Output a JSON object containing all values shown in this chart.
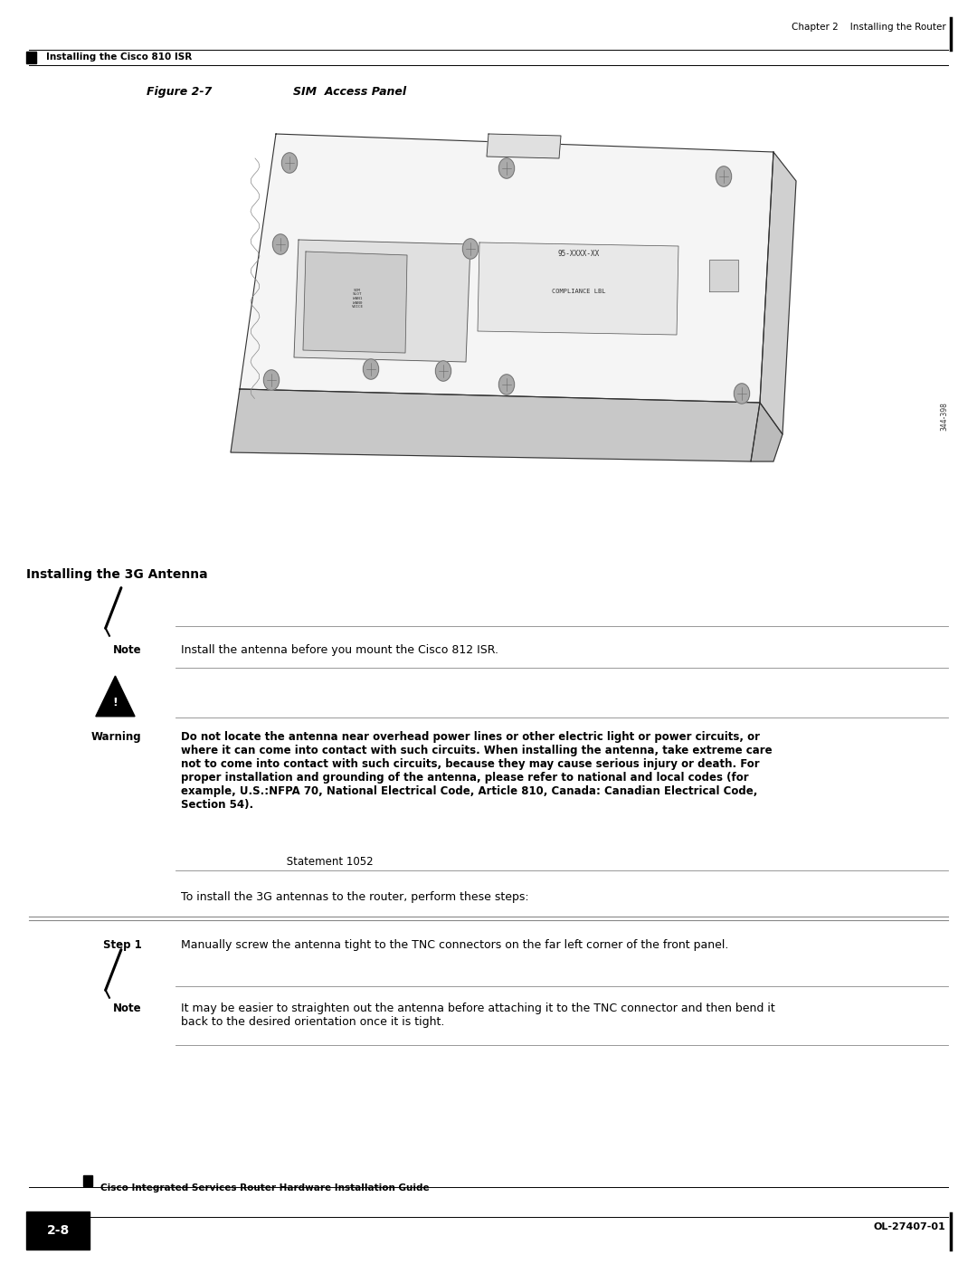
{
  "page_width": 10.8,
  "page_height": 13.97,
  "bg_color": "#ffffff",
  "header_top_text_right": "Chapter 2    Installing the Router",
  "header_bottom_text_left": "Installing the Cisco 810 ISR",
  "figure_label": "Figure 2-7",
  "figure_title": "SIM  Access Panel",
  "section_heading": "Installing the 3G Antenna",
  "note1_label": "Note",
  "note1_text": "Install the antenna before you mount the Cisco 812 ISR.",
  "warning_label": "Warning",
  "warning_text_bold": "Do not locate the antenna near overhead power lines or other electric light or power circuits, or\nwhere it can come into contact with such circuits. When installing the antenna, take extreme care\nnot to come into contact with such circuits, because they may cause serious injury or death. For\nproper installation and grounding of the antenna, please refer to national and local codes (for\nexample, U.S.:NFPA 70, National Electrical Code, Article 810, Canada: Canadian Electrical Code,\nSection 54).",
  "warning_text_normal": " Statement 1052",
  "intro_text": "To install the 3G antennas to the router, perform these steps:",
  "step1_label": "Step 1",
  "step1_text": "Manually screw the antenna tight to the TNC connectors on the far left corner of the front panel.",
  "note2_label": "Note",
  "note2_text": "It may be easier to straighten out the antenna before attaching it to the TNC connector and then bend it\nback to the desired orientation once it is tight.",
  "footer_top_text": "Cisco Integrated Services Router Hardware Installation Guide",
  "footer_page_box_text": "2-8",
  "footer_bottom_text_right": "OL-27407-01",
  "diagram_ref": "344-398"
}
